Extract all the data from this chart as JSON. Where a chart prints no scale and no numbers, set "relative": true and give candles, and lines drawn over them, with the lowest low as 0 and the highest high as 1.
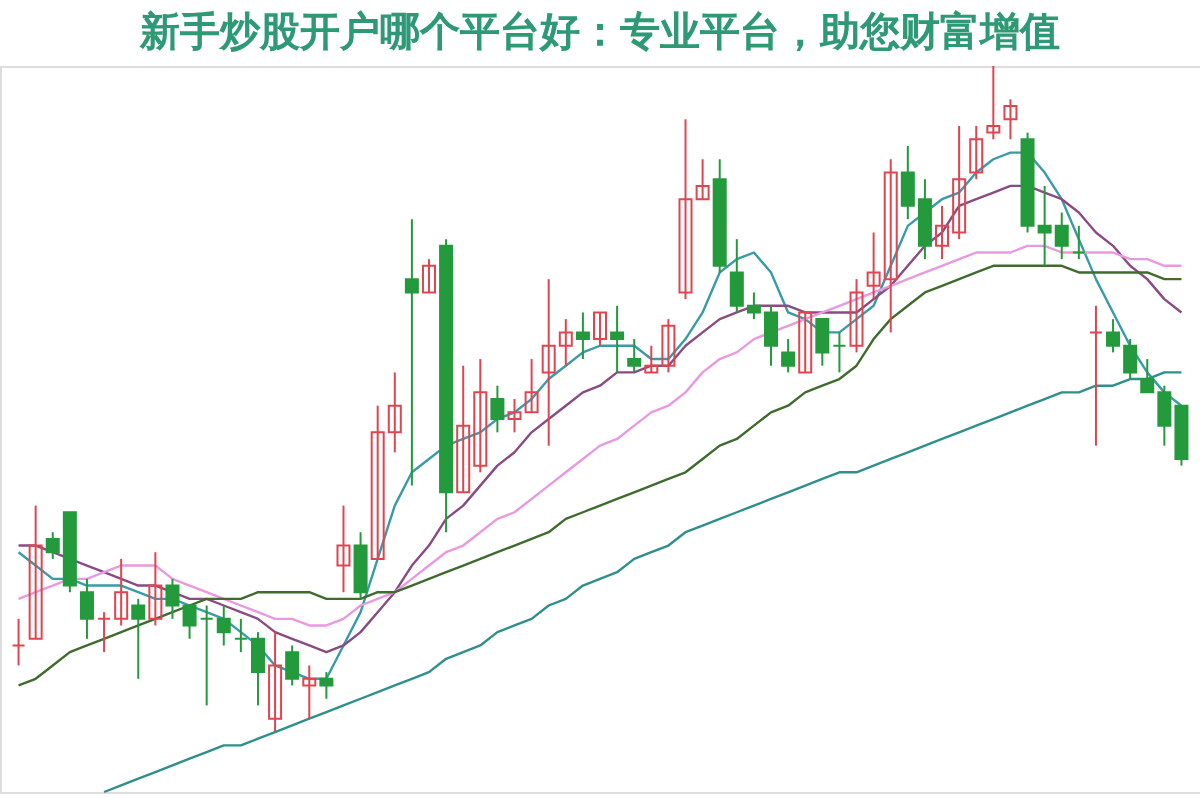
{
  "chart_data": {
    "type": "candlestick",
    "title": "新手炒股开户哪个平台好：专业平台，助您财富增值",
    "relative": true,
    "categories": [
      null,
      null,
      null,
      null,
      null,
      null,
      null,
      null,
      null,
      null,
      null,
      null,
      null,
      null,
      null,
      null,
      null,
      null,
      null,
      null,
      null,
      null,
      null,
      null,
      null,
      null,
      null,
      null,
      null,
      null,
      null,
      null,
      null,
      null,
      null,
      null,
      null,
      null,
      null,
      null,
      null,
      null,
      null,
      null,
      null,
      null,
      null,
      null,
      null,
      null,
      null,
      null,
      null,
      null,
      null,
      null,
      null,
      null,
      null,
      null,
      null,
      null,
      null,
      null,
      null,
      null,
      null,
      null,
      null
    ],
    "ohlc": [
      [
        0.13,
        0.17,
        0.1,
        0.13
      ],
      [
        0.14,
        0.34,
        0.14,
        0.28
      ],
      [
        0.29,
        0.3,
        0.26,
        0.27
      ],
      [
        0.33,
        0.33,
        0.21,
        0.22
      ],
      [
        0.21,
        0.23,
        0.14,
        0.17
      ],
      [
        0.17,
        0.18,
        0.12,
        0.17
      ],
      [
        0.17,
        0.26,
        0.16,
        0.21
      ],
      [
        0.19,
        0.2,
        0.08,
        0.17
      ],
      [
        0.17,
        0.27,
        0.16,
        0.22
      ],
      [
        0.22,
        0.23,
        0.17,
        0.19
      ],
      [
        0.19,
        0.19,
        0.14,
        0.16
      ],
      [
        0.17,
        0.19,
        0.04,
        0.17
      ],
      [
        0.17,
        0.19,
        0.13,
        0.15
      ],
      [
        0.14,
        0.17,
        0.12,
        0.14
      ],
      [
        0.14,
        0.15,
        0.04,
        0.09
      ],
      [
        0.02,
        0.15,
        0.0,
        0.1
      ],
      [
        0.12,
        0.13,
        0.07,
        0.08
      ],
      [
        0.07,
        0.1,
        0.02,
        0.08
      ],
      [
        0.08,
        0.09,
        0.05,
        0.07
      ],
      [
        0.25,
        0.34,
        0.21,
        0.28
      ],
      [
        0.28,
        0.3,
        0.2,
        0.21
      ],
      [
        0.26,
        0.49,
        0.26,
        0.45
      ],
      [
        0.45,
        0.54,
        0.42,
        0.49
      ],
      [
        0.68,
        0.77,
        0.37,
        0.66
      ],
      [
        0.66,
        0.71,
        0.66,
        0.7
      ],
      [
        0.73,
        0.74,
        0.3,
        0.36
      ],
      [
        0.36,
        0.55,
        0.36,
        0.46
      ],
      [
        0.4,
        0.56,
        0.39,
        0.51
      ],
      [
        0.5,
        0.52,
        0.45,
        0.47
      ],
      [
        0.47,
        0.5,
        0.45,
        0.48
      ],
      [
        0.48,
        0.56,
        0.48,
        0.51
      ],
      [
        0.54,
        0.68,
        0.43,
        0.58
      ],
      [
        0.58,
        0.62,
        0.55,
        0.6
      ],
      [
        0.6,
        0.63,
        0.56,
        0.59
      ],
      [
        0.59,
        0.63,
        0.58,
        0.63
      ],
      [
        0.6,
        0.64,
        0.54,
        0.59
      ],
      [
        0.56,
        0.59,
        0.54,
        0.55
      ],
      [
        0.54,
        0.58,
        0.54,
        0.55
      ],
      [
        0.55,
        0.62,
        0.54,
        0.61
      ],
      [
        0.66,
        0.92,
        0.65,
        0.8
      ],
      [
        0.8,
        0.86,
        0.8,
        0.82
      ],
      [
        0.83,
        0.86,
        0.69,
        0.7
      ],
      [
        0.69,
        0.74,
        0.63,
        0.64
      ],
      [
        0.64,
        0.66,
        0.62,
        0.63
      ],
      [
        0.63,
        0.64,
        0.55,
        0.58
      ],
      [
        0.57,
        0.59,
        0.54,
        0.55
      ],
      [
        0.54,
        0.63,
        0.54,
        0.63
      ],
      [
        0.62,
        0.62,
        0.55,
        0.57
      ],
      [
        0.58,
        0.6,
        0.54,
        0.58
      ],
      [
        0.58,
        0.68,
        0.57,
        0.66
      ],
      [
        0.67,
        0.75,
        0.65,
        0.69
      ],
      [
        0.68,
        0.86,
        0.6,
        0.84
      ],
      [
        0.84,
        0.88,
        0.77,
        0.79
      ],
      [
        0.8,
        0.83,
        0.71,
        0.73
      ],
      [
        0.73,
        0.79,
        0.71,
        0.76
      ],
      [
        0.75,
        0.91,
        0.74,
        0.83
      ],
      [
        0.84,
        0.91,
        0.83,
        0.89
      ],
      [
        0.9,
        1.0,
        0.89,
        0.91
      ],
      [
        0.92,
        0.95,
        0.89,
        0.94
      ],
      [
        0.89,
        0.9,
        0.75,
        0.76
      ],
      [
        0.76,
        0.82,
        0.7,
        0.75
      ],
      [
        0.76,
        0.78,
        0.71,
        0.73
      ],
      [
        0.72,
        0.76,
        0.71,
        0.72
      ],
      [
        0.6,
        0.64,
        0.43,
        0.6
      ],
      [
        0.6,
        0.62,
        0.57,
        0.58
      ],
      [
        0.58,
        0.59,
        0.53,
        0.54
      ],
      [
        0.53,
        0.56,
        0.51,
        0.51
      ],
      [
        0.51,
        0.52,
        0.43,
        0.46
      ],
      [
        0.49,
        0.49,
        0.4,
        0.41
      ]
    ],
    "colors": [
      "#e0454f",
      "#e0454f",
      "#239a3b",
      "#239a3b",
      "#239a3b",
      "#e0454f",
      "#e0454f",
      "#239a3b",
      "#e0454f",
      "#239a3b",
      "#239a3b",
      "#239a3b",
      "#239a3b",
      "#239a3b",
      "#239a3b",
      "#e0454f",
      "#239a3b",
      "#e0454f",
      "#239a3b",
      "#e0454f",
      "#239a3b",
      "#e0454f",
      "#e0454f",
      "#239a3b",
      "#e0454f",
      "#239a3b",
      "#e0454f",
      "#e0454f",
      "#239a3b",
      "#e0454f",
      "#e0454f",
      "#e0454f",
      "#e0454f",
      "#239a3b",
      "#e0454f",
      "#239a3b",
      "#239a3b",
      "#e0454f",
      "#e0454f",
      "#e0454f",
      "#e0454f",
      "#239a3b",
      "#239a3b",
      "#239a3b",
      "#239a3b",
      "#239a3b",
      "#e0454f",
      "#239a3b",
      "#239a3b",
      "#e0454f",
      "#e0454f",
      "#e0454f",
      "#239a3b",
      "#239a3b",
      "#e0454f",
      "#e0454f",
      "#e0454f",
      "#e0454f",
      "#e0454f",
      "#239a3b",
      "#239a3b",
      "#239a3b",
      "#239a3b",
      "#e0454f",
      "#239a3b",
      "#239a3b",
      "#239a3b",
      "#239a3b",
      "#239a3b"
    ],
    "series": [
      {
        "type": "line",
        "color": "#3a9aa8",
        "values": [
          0.27,
          0.25,
          0.23,
          0.23,
          0.22,
          0.22,
          0.22,
          0.21,
          0.2,
          0.2,
          0.19,
          0.18,
          0.17,
          0.15,
          0.13,
          0.1,
          0.09,
          0.08,
          0.08,
          0.13,
          0.18,
          0.26,
          0.34,
          0.39,
          0.41,
          0.43,
          0.44,
          0.45,
          0.47,
          0.48,
          0.5,
          0.53,
          0.55,
          0.57,
          0.58,
          0.58,
          0.58,
          0.56,
          0.56,
          0.59,
          0.63,
          0.69,
          0.71,
          0.72,
          0.69,
          0.63,
          0.62,
          0.6,
          0.6,
          0.62,
          0.64,
          0.7,
          0.76,
          0.78,
          0.8,
          0.81,
          0.84,
          0.86,
          0.87,
          0.87,
          0.84,
          0.8,
          0.74,
          0.68,
          0.63,
          0.58,
          0.54,
          0.51,
          0.49
        ]
      },
      {
        "type": "line",
        "color": "#8a4a82",
        "values": [
          0.28,
          0.28,
          0.27,
          0.26,
          0.25,
          0.24,
          0.23,
          0.22,
          0.22,
          0.21,
          0.2,
          0.2,
          0.19,
          0.18,
          0.17,
          0.15,
          0.14,
          0.13,
          0.12,
          0.13,
          0.15,
          0.18,
          0.21,
          0.25,
          0.28,
          0.32,
          0.34,
          0.37,
          0.4,
          0.42,
          0.45,
          0.47,
          0.49,
          0.51,
          0.52,
          0.54,
          0.54,
          0.55,
          0.55,
          0.58,
          0.6,
          0.62,
          0.63,
          0.64,
          0.64,
          0.64,
          0.63,
          0.63,
          0.63,
          0.63,
          0.65,
          0.67,
          0.7,
          0.73,
          0.75,
          0.79,
          0.8,
          0.81,
          0.82,
          0.82,
          0.81,
          0.8,
          0.78,
          0.75,
          0.73,
          0.7,
          0.68,
          0.65,
          0.63
        ]
      },
      {
        "type": "line",
        "color": "#e89ae0",
        "values": [
          0.2,
          0.21,
          0.22,
          0.23,
          0.23,
          0.24,
          0.25,
          0.25,
          0.25,
          0.23,
          0.22,
          0.21,
          0.2,
          0.19,
          0.18,
          0.17,
          0.17,
          0.16,
          0.16,
          0.17,
          0.19,
          0.2,
          0.21,
          0.23,
          0.25,
          0.27,
          0.28,
          0.3,
          0.32,
          0.33,
          0.35,
          0.37,
          0.39,
          0.41,
          0.43,
          0.44,
          0.46,
          0.48,
          0.49,
          0.51,
          0.54,
          0.56,
          0.57,
          0.59,
          0.6,
          0.61,
          0.62,
          0.63,
          0.64,
          0.65,
          0.66,
          0.67,
          0.68,
          0.69,
          0.7,
          0.71,
          0.72,
          0.72,
          0.72,
          0.73,
          0.73,
          0.72,
          0.72,
          0.72,
          0.72,
          0.71,
          0.71,
          0.7,
          0.7
        ]
      },
      {
        "type": "line",
        "color": "#3f6b2e",
        "values": [
          0.07,
          0.08,
          0.1,
          0.12,
          0.13,
          0.14,
          0.15,
          0.16,
          0.17,
          0.18,
          0.19,
          0.2,
          0.2,
          0.2,
          0.21,
          0.21,
          0.21,
          0.21,
          0.2,
          0.2,
          0.2,
          0.21,
          0.21,
          0.22,
          0.23,
          0.24,
          0.25,
          0.26,
          0.27,
          0.28,
          0.29,
          0.3,
          0.32,
          0.33,
          0.34,
          0.35,
          0.36,
          0.37,
          0.38,
          0.39,
          0.41,
          0.43,
          0.44,
          0.46,
          0.48,
          0.49,
          0.51,
          0.52,
          0.53,
          0.55,
          0.59,
          0.62,
          0.64,
          0.66,
          0.67,
          0.68,
          0.69,
          0.7,
          0.7,
          0.7,
          0.7,
          0.7,
          0.69,
          0.69,
          0.69,
          0.69,
          0.69,
          0.68,
          0.68
        ]
      },
      {
        "type": "line",
        "color": "#2f8f8a",
        "values": [
          null,
          null,
          null,
          null,
          null,
          -0.09,
          -0.08,
          -0.07,
          -0.06,
          -0.05,
          -0.04,
          -0.03,
          -0.02,
          -0.02,
          -0.01,
          0.0,
          0.01,
          0.02,
          0.03,
          0.04,
          0.05,
          0.06,
          0.07,
          0.08,
          0.09,
          0.11,
          0.12,
          0.13,
          0.15,
          0.16,
          0.17,
          0.19,
          0.2,
          0.22,
          0.23,
          0.24,
          0.26,
          0.27,
          0.28,
          0.3,
          0.31,
          0.32,
          0.33,
          0.34,
          0.35,
          0.36,
          0.37,
          0.38,
          0.39,
          0.39,
          0.4,
          0.41,
          0.42,
          0.43,
          0.44,
          0.45,
          0.46,
          0.47,
          0.48,
          0.49,
          0.5,
          0.51,
          0.51,
          0.52,
          0.52,
          0.53,
          0.53,
          0.54,
          0.54
        ]
      }
    ]
  }
}
